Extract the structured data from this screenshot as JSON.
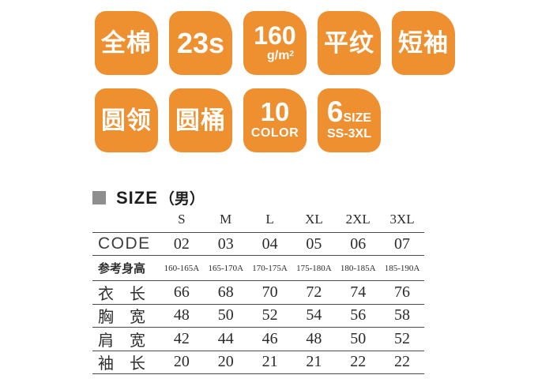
{
  "badges": {
    "accent_color": "#EE8F30",
    "row1": [
      {
        "label": "全棉"
      },
      {
        "label": "23s"
      },
      {
        "value": "160",
        "unit": "g/m",
        "unit_sup": "2"
      },
      {
        "label": "平纹"
      },
      {
        "label": "短袖"
      }
    ],
    "row2": [
      {
        "label": "圆领"
      },
      {
        "label": "圆桶"
      },
      {
        "value": "10",
        "caption": "COLOR"
      },
      {
        "value": "6",
        "value_suffix": "SIZE",
        "caption": "SS-3XL"
      }
    ]
  },
  "size_section": {
    "marker_color": "#8e8e8e",
    "title": "SIZE",
    "gender": "（男）",
    "table": {
      "header": [
        "S",
        "M",
        "L",
        "XL",
        "2XL",
        "3XL"
      ],
      "rows": [
        {
          "label": "CODE",
          "values": [
            "02",
            "03",
            "04",
            "05",
            "06",
            "07"
          ]
        },
        {
          "label": "参考身高",
          "values": [
            "160-165A",
            "165-170A",
            "170-175A",
            "175-180A",
            "180-185A",
            "185-190A"
          ]
        },
        {
          "label": "衣　长",
          "values": [
            "66",
            "68",
            "70",
            "72",
            "74",
            "76"
          ]
        },
        {
          "label": "胸　宽",
          "values": [
            "48",
            "50",
            "52",
            "54",
            "56",
            "58"
          ]
        },
        {
          "label": "肩　宽",
          "values": [
            "42",
            "44",
            "46",
            "48",
            "50",
            "52"
          ]
        },
        {
          "label": "袖　长",
          "values": [
            "20",
            "20",
            "21",
            "21",
            "22",
            "22"
          ]
        }
      ]
    }
  }
}
